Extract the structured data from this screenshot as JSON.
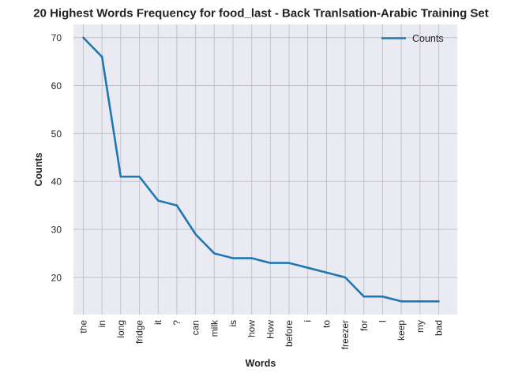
{
  "chart_data": {
    "type": "line",
    "title": "20 Highest Words Frequency for food_last - Back Tranlsation-Arabic Training Set",
    "xlabel": "Words",
    "ylabel": "Counts",
    "categories": [
      "the",
      "in",
      "long",
      "fridge",
      "it",
      "?",
      "can",
      "milk",
      "is",
      "how",
      "How",
      "before",
      "i",
      "to",
      "freezer",
      "for",
      "I",
      "keep",
      "my",
      "bad"
    ],
    "series": [
      {
        "name": "Counts",
        "values": [
          70,
          66,
          41,
          41,
          36,
          35,
          29,
          25,
          24,
          24,
          23,
          23,
          22,
          21,
          20,
          16,
          16,
          15,
          15,
          15
        ]
      }
    ],
    "ylim": [
      12.25,
      72.75
    ],
    "yticks": [
      20,
      30,
      40,
      50,
      60,
      70
    ],
    "grid": true,
    "legend_position": "top-right",
    "colors": {
      "line": "#1f77b4",
      "plot_background": "#eaeaf2",
      "grid": "#c2c2c8"
    }
  }
}
